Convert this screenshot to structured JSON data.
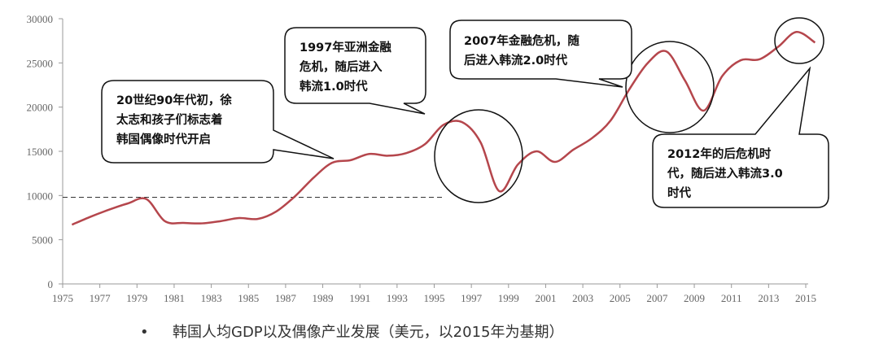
{
  "chart_data": {
    "type": "line",
    "title": "",
    "xlabel": "",
    "ylabel": "",
    "ylim": [
      0,
      30000
    ],
    "xlim": [
      1975,
      2015
    ],
    "yticks": [
      0,
      5000,
      10000,
      15000,
      20000,
      25000,
      30000
    ],
    "xticks": [
      1975,
      1977,
      1979,
      1981,
      1983,
      1985,
      1987,
      1989,
      1991,
      1993,
      1995,
      1997,
      1999,
      2001,
      2003,
      2005,
      2007,
      2009,
      2011,
      2013,
      2015
    ],
    "series": [
      {
        "name": "韩国人均GDP",
        "color": "#b5464c",
        "x": [
          1975,
          1976,
          1977,
          1978,
          1979,
          1980,
          1981,
          1982,
          1983,
          1984,
          1985,
          1986,
          1987,
          1988,
          1989,
          1990,
          1991,
          1992,
          1993,
          1994,
          1995,
          1996,
          1997,
          1998,
          1999,
          2000,
          2001,
          2002,
          2003,
          2004,
          2005,
          2006,
          2007,
          2008,
          2009,
          2010,
          2011,
          2012,
          2013,
          2014,
          2015
        ],
        "values": [
          6700,
          7600,
          8400,
          9100,
          9600,
          7100,
          6900,
          6850,
          7100,
          7450,
          7350,
          8200,
          9900,
          12000,
          13700,
          14000,
          14700,
          14500,
          14800,
          15800,
          18000,
          18300,
          16000,
          10500,
          13500,
          15000,
          13800,
          15200,
          16500,
          18500,
          22000,
          25000,
          26300,
          23000,
          19600,
          23500,
          25300,
          25400,
          26800,
          28500,
          27300
        ]
      }
    ],
    "reference_line": {
      "value": 9800,
      "style": "dashed"
    },
    "annotations": [
      {
        "lines": [
          "20世纪90年代初，徐",
          "太志和孩子们标志着",
          "韩国偶像时代开启"
        ]
      },
      {
        "lines": [
          "1997年亚洲金融",
          "危机，随后进入",
          "韩流1.0时代"
        ]
      },
      {
        "lines": [
          "2007年金融危机，随",
          "后进入韩流2.0时代"
        ]
      },
      {
        "lines": [
          "2012年的后危机时",
          "代，随后进入韩流3.0",
          "时代"
        ]
      }
    ]
  },
  "caption": {
    "bullet": "•",
    "text": "韩国人均GDP以及偶像产业发展（美元，以2015年为基期）"
  }
}
